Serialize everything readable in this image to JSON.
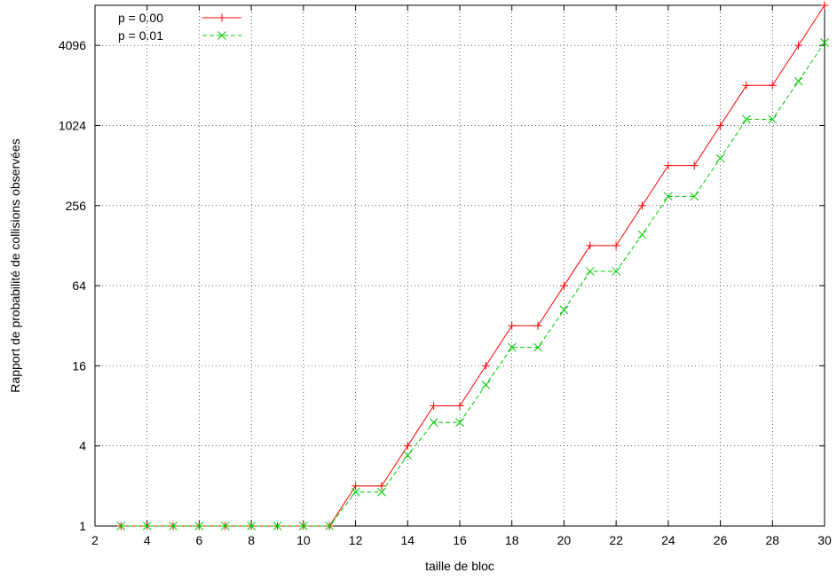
{
  "chart_data": {
    "type": "line",
    "title": "",
    "xlabel": "taille de bloc",
    "ylabel": "Rapport de probabilité de collisions observées",
    "xlim": [
      2,
      30
    ],
    "ylim": [
      1,
      8192
    ],
    "yscale": "log2",
    "grid": true,
    "legend_position": "top-left",
    "x_ticks": [
      2,
      4,
      6,
      8,
      10,
      12,
      14,
      16,
      18,
      20,
      22,
      24,
      26,
      28,
      30
    ],
    "y_ticks": [
      1,
      4,
      16,
      64,
      256,
      1024,
      4096
    ],
    "x": [
      3,
      4,
      5,
      6,
      7,
      8,
      9,
      10,
      11,
      12,
      13,
      14,
      15,
      16,
      17,
      18,
      19,
      20,
      21,
      22,
      23,
      24,
      25,
      26,
      27,
      28,
      29,
      30
    ],
    "series": [
      {
        "name": "p = 0.00",
        "color": "#ff0000",
        "marker": "plus",
        "dash": "solid",
        "values": [
          1,
          1,
          1,
          1,
          1,
          1,
          1,
          1,
          1,
          2,
          2,
          4,
          8,
          8,
          16,
          32,
          32,
          64,
          128,
          128,
          256,
          512,
          512,
          1024,
          2048,
          2048,
          4096,
          8192
        ]
      },
      {
        "name": "p = 0.01",
        "color": "#00c800",
        "marker": "cross",
        "dash": "dashed",
        "values": [
          1,
          1,
          1,
          1,
          1,
          1,
          1,
          1,
          1,
          1.8,
          1.8,
          3.4,
          6,
          6,
          11.5,
          22,
          22,
          42,
          82,
          82,
          155,
          300,
          300,
          580,
          1140,
          1140,
          2200,
          4300
        ]
      }
    ]
  }
}
